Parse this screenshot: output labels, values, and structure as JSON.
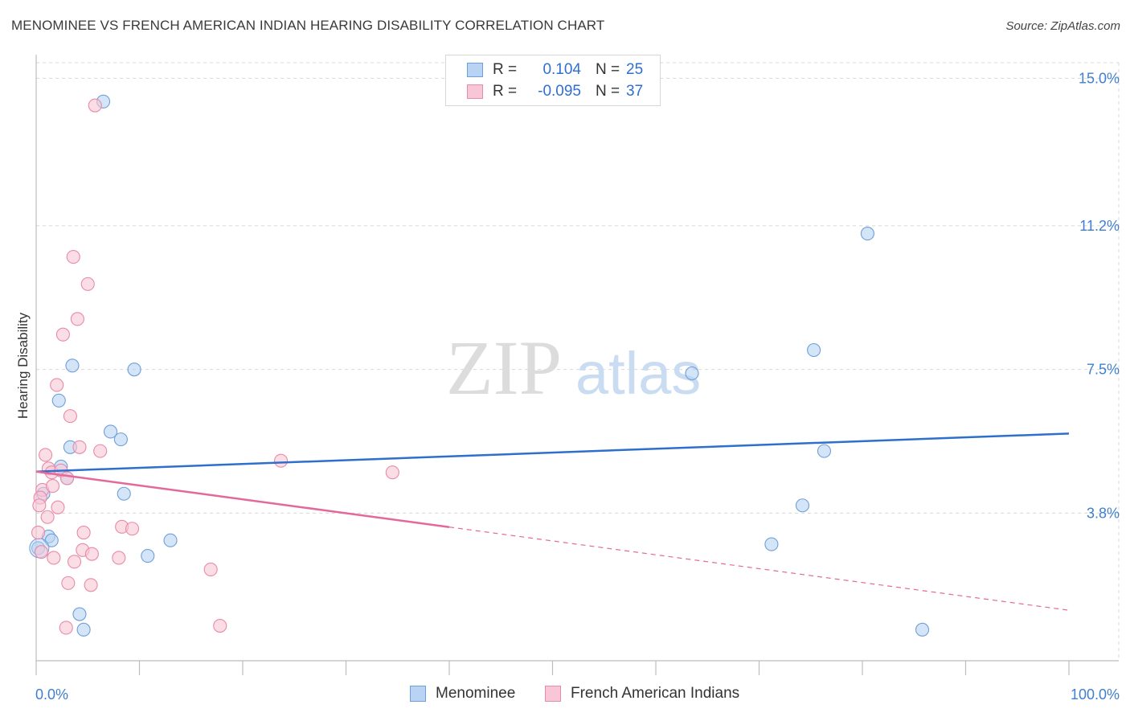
{
  "title": "MENOMINEE VS FRENCH AMERICAN INDIAN HEARING DISABILITY CORRELATION CHART",
  "source": "Source: ZipAtlas.com",
  "watermark": {
    "zip": "ZIP",
    "atlas": "atlas"
  },
  "legend": {
    "rows": [
      {
        "r_label": "R =",
        "r_value": "0.104",
        "n_label": "N =",
        "n_value": "25"
      },
      {
        "r_label": "R =",
        "r_value": "-0.095",
        "n_label": "N =",
        "n_value": "37"
      }
    ]
  },
  "bottom_legend": [
    "Menominee",
    "French American Indians"
  ],
  "colors": {
    "blue_fill": "#b8d3f3",
    "blue_stroke": "#6f9fd8",
    "blue_line": "#2d6fcc",
    "pink_fill": "#f8c6d6",
    "pink_stroke": "#e88aa8",
    "pink_line": "#e3699a",
    "grid": "#d8d8d8",
    "tick_text": "#3f7fd0"
  },
  "chart_data": {
    "type": "scatter",
    "title": "MENOMINEE VS FRENCH AMERICAN INDIAN HEARING DISABILITY CORRELATION CHART",
    "xlabel": "",
    "ylabel": "Hearing Disability",
    "xlim": [
      0,
      100
    ],
    "ylim": [
      0,
      15.4
    ],
    "x_tick_labels": [
      "0.0%",
      "100.0%"
    ],
    "y_ticks": [
      3.8,
      7.5,
      11.2,
      15.0
    ],
    "y_tick_labels": [
      "3.8%",
      "7.5%",
      "11.2%",
      "15.0%"
    ],
    "grid": true,
    "series": [
      {
        "name": "Menominee",
        "r": 0.104,
        "n": 25,
        "points": [
          {
            "x": 6.5,
            "y": 14.4
          },
          {
            "x": 3.5,
            "y": 7.6
          },
          {
            "x": 9.5,
            "y": 7.5
          },
          {
            "x": 2.2,
            "y": 6.7
          },
          {
            "x": 7.2,
            "y": 5.9
          },
          {
            "x": 8.2,
            "y": 5.7
          },
          {
            "x": 3.3,
            "y": 5.5
          },
          {
            "x": 2.4,
            "y": 5.0
          },
          {
            "x": 3.0,
            "y": 4.7
          },
          {
            "x": 0.7,
            "y": 4.3
          },
          {
            "x": 8.5,
            "y": 4.3
          },
          {
            "x": 1.2,
            "y": 3.2
          },
          {
            "x": 1.5,
            "y": 3.1
          },
          {
            "x": 13.0,
            "y": 3.1
          },
          {
            "x": 0.2,
            "y": 2.9
          },
          {
            "x": 10.8,
            "y": 2.7
          },
          {
            "x": 4.2,
            "y": 1.2
          },
          {
            "x": 4.6,
            "y": 0.8
          },
          {
            "x": 80.5,
            "y": 11.0
          },
          {
            "x": 75.3,
            "y": 8.0
          },
          {
            "x": 63.5,
            "y": 7.4
          },
          {
            "x": 76.3,
            "y": 5.4
          },
          {
            "x": 74.2,
            "y": 4.0
          },
          {
            "x": 71.2,
            "y": 3.0
          },
          {
            "x": 85.8,
            "y": 0.8
          }
        ],
        "trend": {
          "x0": 0,
          "y0": 4.87,
          "x1": 100,
          "y1": 5.85
        }
      },
      {
        "name": "French American Indians",
        "r": -0.095,
        "n": 37,
        "points": [
          {
            "x": 5.7,
            "y": 14.3
          },
          {
            "x": 3.6,
            "y": 10.4
          },
          {
            "x": 5.0,
            "y": 9.7
          },
          {
            "x": 4.0,
            "y": 8.8
          },
          {
            "x": 2.6,
            "y": 8.4
          },
          {
            "x": 2.0,
            "y": 7.1
          },
          {
            "x": 3.3,
            "y": 6.3
          },
          {
            "x": 4.2,
            "y": 5.5
          },
          {
            "x": 6.2,
            "y": 5.4
          },
          {
            "x": 0.9,
            "y": 5.3
          },
          {
            "x": 1.2,
            "y": 4.95
          },
          {
            "x": 1.5,
            "y": 4.85
          },
          {
            "x": 2.4,
            "y": 4.9
          },
          {
            "x": 3.0,
            "y": 4.7
          },
          {
            "x": 0.6,
            "y": 4.4
          },
          {
            "x": 1.6,
            "y": 4.5
          },
          {
            "x": 0.4,
            "y": 4.2
          },
          {
            "x": 0.3,
            "y": 4.0
          },
          {
            "x": 2.1,
            "y": 3.95
          },
          {
            "x": 1.1,
            "y": 3.7
          },
          {
            "x": 8.3,
            "y": 3.45
          },
          {
            "x": 9.3,
            "y": 3.4
          },
          {
            "x": 4.6,
            "y": 3.3
          },
          {
            "x": 0.2,
            "y": 3.3
          },
          {
            "x": 4.5,
            "y": 2.85
          },
          {
            "x": 5.4,
            "y": 2.75
          },
          {
            "x": 8.0,
            "y": 2.65
          },
          {
            "x": 1.7,
            "y": 2.65
          },
          {
            "x": 3.7,
            "y": 2.55
          },
          {
            "x": 16.9,
            "y": 2.35
          },
          {
            "x": 3.1,
            "y": 2.0
          },
          {
            "x": 5.3,
            "y": 1.95
          },
          {
            "x": 23.7,
            "y": 5.15
          },
          {
            "x": 34.5,
            "y": 4.85
          },
          {
            "x": 2.9,
            "y": 0.85
          },
          {
            "x": 17.8,
            "y": 0.9
          },
          {
            "x": 0.5,
            "y": 2.8
          }
        ],
        "trend": {
          "x0": 0,
          "y0": 4.87,
          "x1": 100,
          "y1": 1.3,
          "solid_until_x": 40
        }
      }
    ]
  }
}
